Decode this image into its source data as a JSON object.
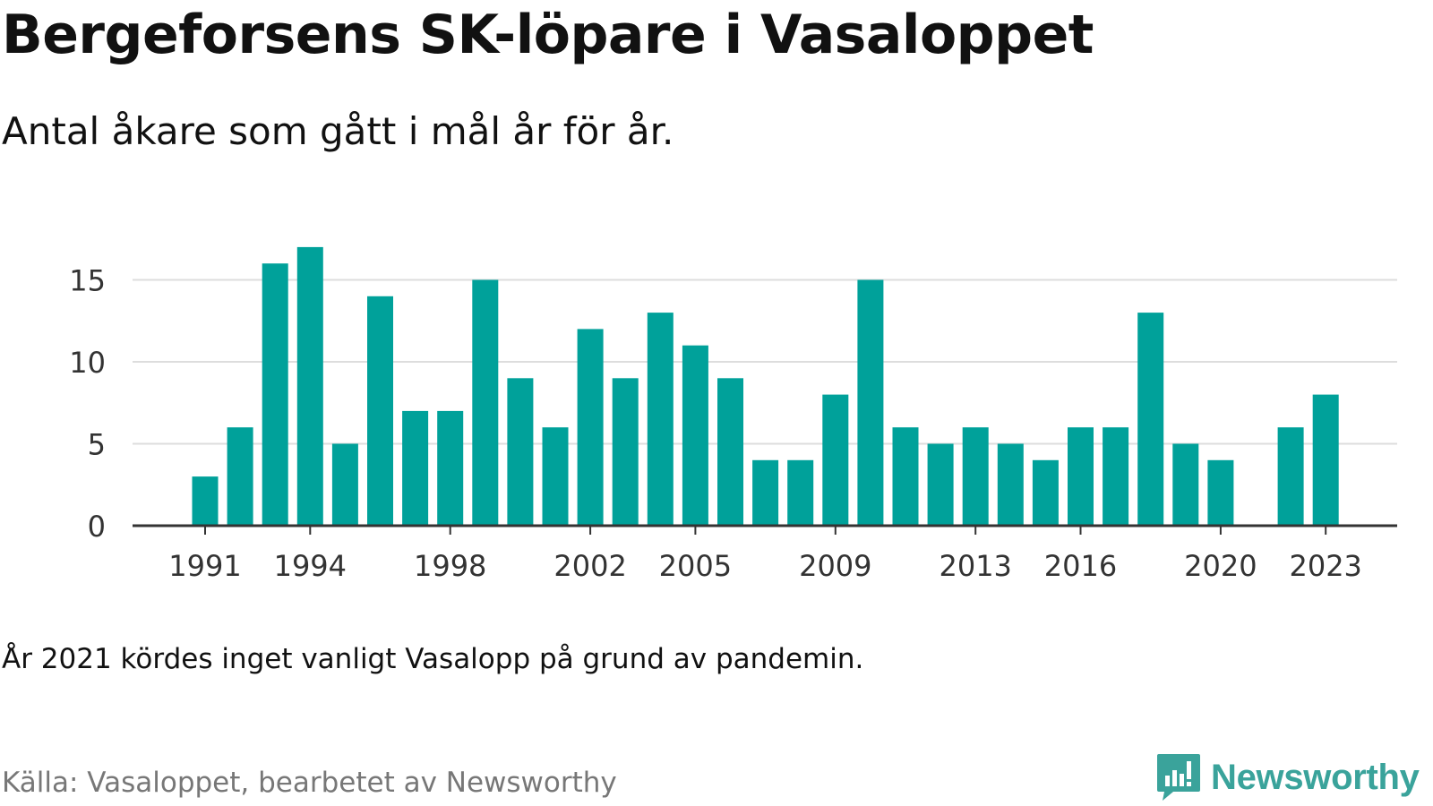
{
  "header": {
    "title": "Bergeforsens SK-löpare i Vasaloppet",
    "subtitle": "Antal åkare som gått i mål år för år."
  },
  "note": "År 2021 kördes inget vanligt Vasalopp på grund av pandemin.",
  "footer": {
    "source": "Källa: Vasaloppet, bearbetet av Newsworthy",
    "brand_name": "Newsworthy",
    "brand_icon": "bar-chart-speech-bubble-icon"
  },
  "colors": {
    "bar": "#00a19a",
    "brand": "#3aa39b",
    "grid": "#dddddd",
    "axis": "#333333"
  },
  "chart_data": {
    "type": "bar",
    "categories": [
      "1991",
      "1992",
      "1993",
      "1994",
      "1995",
      "1996",
      "1997",
      "1998",
      "1999",
      "2000",
      "2001",
      "2002",
      "2003",
      "2004",
      "2005",
      "2006",
      "2007",
      "2008",
      "2009",
      "2010",
      "2011",
      "2012",
      "2013",
      "2014",
      "2015",
      "2016",
      "2017",
      "2018",
      "2019",
      "2020",
      "2021",
      "2022",
      "2023"
    ],
    "values": [
      3,
      6,
      16,
      17,
      5,
      14,
      7,
      7,
      15,
      9,
      6,
      12,
      9,
      13,
      11,
      9,
      4,
      4,
      8,
      15,
      6,
      5,
      6,
      5,
      4,
      6,
      6,
      13,
      5,
      4,
      0,
      6,
      8
    ],
    "x_tick_labels": [
      "1991",
      "1994",
      "1998",
      "2002",
      "2005",
      "2009",
      "2013",
      "2016",
      "2020",
      "2023"
    ],
    "y_ticks": [
      0,
      5,
      10,
      15
    ],
    "ylim": [
      0,
      18
    ],
    "xlabel": "",
    "ylabel": "",
    "grid": true
  }
}
